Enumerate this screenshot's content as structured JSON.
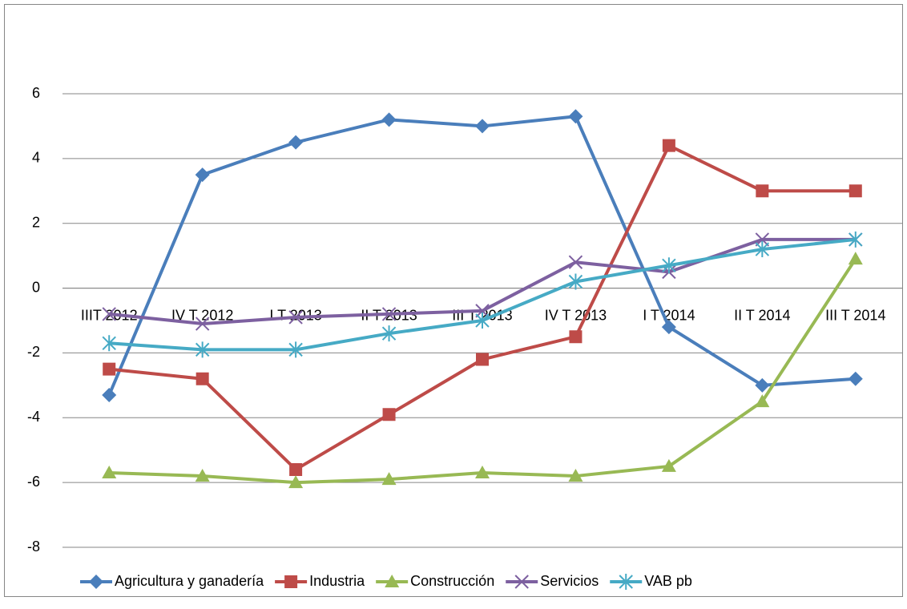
{
  "chart_data": {
    "type": "line",
    "categories": [
      "IIIT 2012",
      "IV T 2012",
      "I T 2013",
      "II T 2013",
      "III T 2013",
      "IV T 2013",
      "I T 2014",
      "II T 2014",
      "III T 2014"
    ],
    "series": [
      {
        "name": "Agricultura y ganadería",
        "color": "#4a7ebb",
        "marker": "diamond",
        "values": [
          -3.3,
          3.5,
          4.5,
          5.2,
          5.0,
          5.3,
          -1.2,
          -3.0,
          -2.8
        ]
      },
      {
        "name": "Industria",
        "color": "#be4b48",
        "marker": "square",
        "values": [
          -2.5,
          -2.8,
          -5.6,
          -3.9,
          -2.2,
          -1.5,
          4.4,
          3.0,
          3.0
        ]
      },
      {
        "name": "Construcción",
        "color": "#98b954",
        "marker": "triangle",
        "values": [
          -5.7,
          -5.8,
          -6.0,
          -5.9,
          -5.7,
          -5.8,
          -5.5,
          -3.5,
          0.9
        ]
      },
      {
        "name": "Servicios",
        "color": "#7d60a0",
        "marker": "x",
        "values": [
          -0.8,
          -1.1,
          -0.9,
          -0.8,
          -0.7,
          0.8,
          0.5,
          1.5,
          1.5
        ]
      },
      {
        "name": "VAB pb",
        "color": "#46aac5",
        "marker": "star",
        "values": [
          -1.7,
          -1.9,
          -1.9,
          -1.4,
          -1.0,
          0.2,
          0.7,
          1.2,
          1.5
        ]
      }
    ],
    "ylim": [
      -8,
      6
    ],
    "yticks": [
      -8,
      -6,
      -4,
      -2,
      0,
      2,
      4,
      6
    ],
    "grid": true,
    "legend": "bottom"
  }
}
